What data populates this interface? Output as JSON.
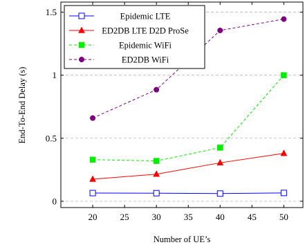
{
  "chart_data": {
    "type": "line",
    "xlabel": "Number of UE’s",
    "ylabel": "End-To-End Delay (s)",
    "x": [
      20,
      30,
      40,
      50
    ],
    "xlim": [
      15,
      53
    ],
    "ylim": [
      -0.05,
      1.58
    ],
    "xticks": [
      20,
      25,
      30,
      35,
      40,
      45,
      50
    ],
    "yticks": [
      0,
      0.5,
      1,
      1.5
    ],
    "ytick_labels": [
      "0",
      "0.5",
      "1",
      "1.5"
    ],
    "grid": "horizontal-dashed",
    "legend_position": "top-left",
    "series": [
      {
        "name": "Epidemic LTE",
        "values": [
          0.065,
          0.064,
          0.061,
          0.066
        ],
        "color": "#0000ff",
        "dashed": false,
        "marker": "open-square"
      },
      {
        "name": "ED2DB LTE D2D ProSe",
        "values": [
          0.175,
          0.215,
          0.305,
          0.38
        ],
        "color": "#ff0000",
        "dashed": false,
        "marker": "triangle"
      },
      {
        "name": "Epidemic WiFi",
        "values": [
          0.33,
          0.32,
          0.425,
          1.0
        ],
        "color": "#00ee00",
        "dashed": true,
        "marker": "square"
      },
      {
        "name": "ED2DB WiFi",
        "values": [
          0.66,
          0.885,
          1.355,
          1.445
        ],
        "color": "#7f007f",
        "dashed": true,
        "marker": "circle"
      }
    ]
  }
}
